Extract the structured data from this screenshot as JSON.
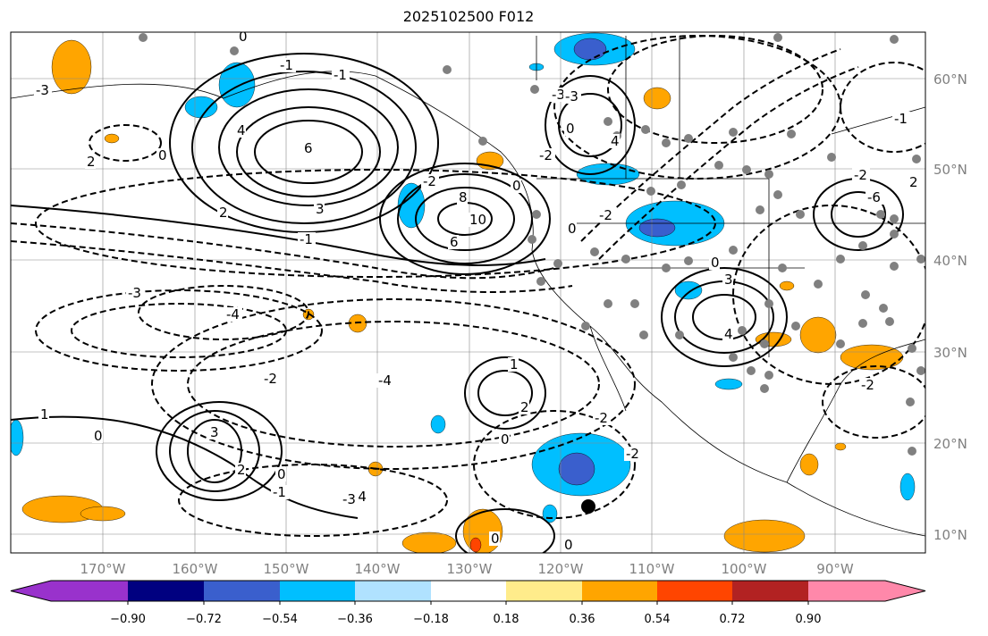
{
  "title": "2025102500 F012",
  "map": {
    "lon_ticks": [
      "170°W",
      "160°W",
      "150°W",
      "140°W",
      "130°W",
      "120°W",
      "110°W",
      "100°W",
      "90°W"
    ],
    "lat_ticks": [
      "60°N",
      "50°N",
      "40°N",
      "30°N",
      "20°N",
      "10°N"
    ],
    "contour_labels": [
      "0",
      "2",
      "0",
      "-1",
      "-3",
      "6",
      "4",
      "-2",
      "0",
      "2",
      "3",
      "-1",
      "8",
      "10",
      "6",
      "-4",
      "0",
      "-3",
      "-3",
      "0",
      "-4",
      "-3",
      "-1",
      "-4",
      "-2",
      "-2",
      "1",
      "2",
      "-2",
      "0",
      "1",
      "3",
      "2",
      "0",
      "-2",
      "-1",
      "0",
      "0",
      "-2",
      "0",
      "4",
      "-3",
      "3",
      "4",
      "-6",
      "0",
      "-2",
      "-1",
      "-2",
      "2"
    ],
    "stations_color": "#808080"
  },
  "colorbar": {
    "colors": [
      "#9932cc",
      "#000080",
      "#3a5fcd",
      "#00bfff",
      "#b0e2ff",
      "#ffffff",
      "#ffec8b",
      "#ffa500",
      "#ff4500",
      "#b22222",
      "#ff88aa"
    ],
    "tick_labels": [
      "−0.90",
      "−0.72",
      "−0.54",
      "−0.36",
      "−0.18",
      "0.18",
      "0.36",
      "0.54",
      "0.72",
      "0.90"
    ]
  }
}
